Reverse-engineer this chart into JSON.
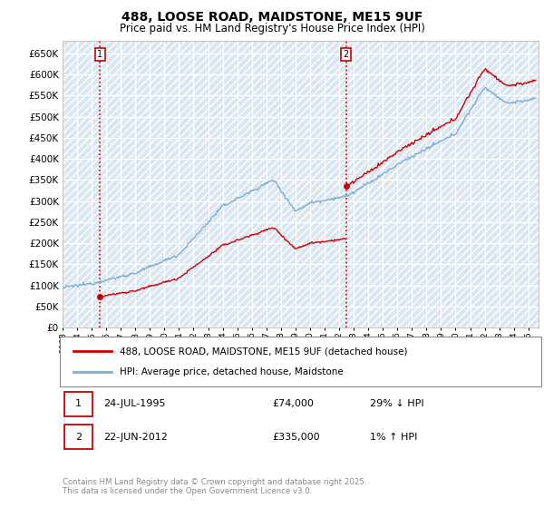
{
  "title": "488, LOOSE ROAD, MAIDSTONE, ME15 9UF",
  "subtitle": "Price paid vs. HM Land Registry's House Price Index (HPI)",
  "ylim": [
    0,
    680000
  ],
  "yticks": [
    0,
    50000,
    100000,
    150000,
    200000,
    250000,
    300000,
    350000,
    400000,
    450000,
    500000,
    550000,
    600000,
    650000
  ],
  "x_start_year": 1993,
  "x_end_year": 2025,
  "legend_line1": "488, LOOSE ROAD, MAIDSTONE, ME15 9UF (detached house)",
  "legend_line2": "HPI: Average price, detached house, Maidstone",
  "line_color_price": "#cc0000",
  "line_color_hpi": "#7bafd4",
  "marker1_date": "24-JUL-1995",
  "marker1_price": 74000,
  "marker1_year": 1995.56,
  "marker1_label": "29% ↓ HPI",
  "marker2_date": "22-JUN-2012",
  "marker2_price": 335000,
  "marker2_year": 2012.47,
  "marker2_label": "1% ↑ HPI",
  "footnote": "Contains HM Land Registry data © Crown copyright and database right 2025.\nThis data is licensed under the Open Government Licence v3.0.",
  "background_color": "#dce6f1",
  "grid_color": "#ffffff",
  "vline_color": "#cc0000",
  "marker_box_color": "#cc0000",
  "title_fontsize": 10,
  "subtitle_fontsize": 8.5
}
